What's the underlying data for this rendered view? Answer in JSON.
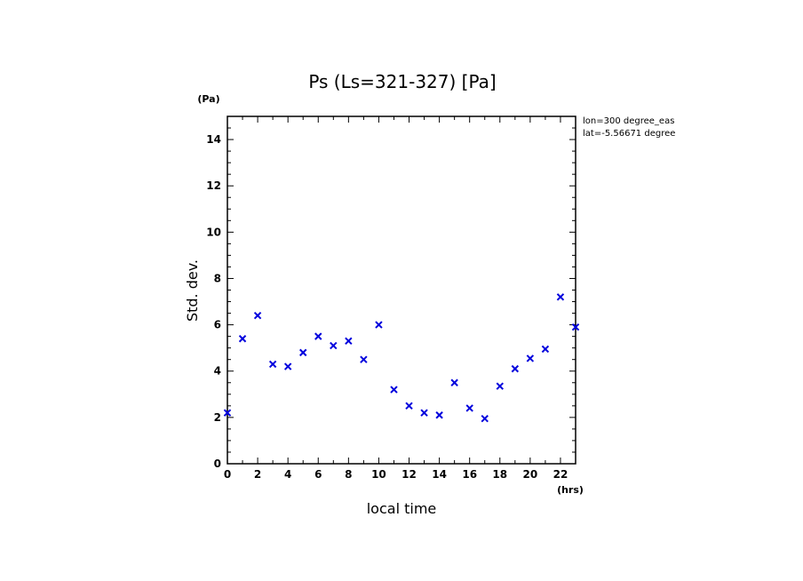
{
  "chart_data": {
    "type": "scatter",
    "title": "Ps (Ls=321-327) [Pa]",
    "xlabel": "local time",
    "ylabel": "Std. dev.",
    "x_unit": "(hrs)",
    "y_unit": "(Pa)",
    "xlim": [
      0,
      23
    ],
    "ylim": [
      0,
      15
    ],
    "x_ticks": [
      0,
      2,
      4,
      6,
      8,
      10,
      12,
      14,
      16,
      18,
      20,
      22
    ],
    "y_ticks": [
      0,
      2,
      4,
      6,
      8,
      10,
      12,
      14
    ],
    "annotations": [
      "lon=300 degree_eas",
      "lat=-5.56671 degree"
    ],
    "marker": "x",
    "color": "#0000dd",
    "series": [
      {
        "x": [
          0,
          1,
          2,
          3,
          4,
          5,
          6,
          7,
          8,
          9,
          10,
          11,
          12,
          13,
          14,
          15,
          16,
          17,
          18,
          19,
          20,
          21,
          22,
          23
        ],
        "values": [
          2.2,
          5.4,
          6.4,
          4.3,
          4.2,
          4.8,
          5.5,
          5.1,
          5.3,
          4.5,
          6.0,
          3.2,
          2.5,
          2.2,
          2.1,
          3.5,
          2.4,
          1.95,
          3.35,
          4.1,
          4.55,
          4.95,
          7.2,
          5.9
        ]
      }
    ]
  }
}
